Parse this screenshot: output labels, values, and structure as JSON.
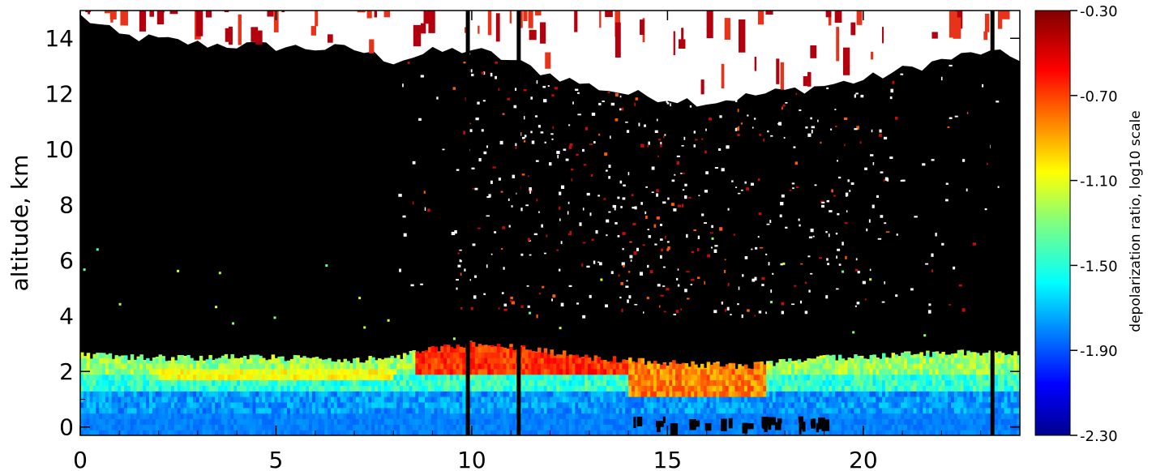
{
  "chart_data": {
    "type": "heatmap",
    "title": "",
    "xlabel": "",
    "ylabel": "altitude, km",
    "xlim": [
      0,
      24
    ],
    "ylim": [
      -0.3,
      15
    ],
    "x_ticks": [
      0,
      5,
      10,
      15,
      20
    ],
    "x_tick_labels": [
      "0",
      "5",
      "10",
      "15",
      "20"
    ],
    "y_ticks": [
      0,
      2,
      4,
      6,
      8,
      10,
      12,
      14
    ],
    "y_tick_labels": [
      "0",
      "2",
      "4",
      "6",
      "8",
      "10",
      "12",
      "14"
    ],
    "grid": false,
    "colorbar": {
      "label": "depolarization ratio, log10 scale",
      "range": [
        -2.3,
        -0.3
      ],
      "ticks": [
        -0.3,
        -0.7,
        -1.1,
        -1.5,
        -1.9,
        -2.3
      ],
      "tick_labels": [
        "-0.30",
        "-0.70",
        "-1.10",
        "-1.50",
        "-1.90",
        "-2.30"
      ],
      "colormap": "jet"
    },
    "colors": {
      "no_signal": "#000000",
      "missing": "#ffffff"
    },
    "regions": {
      "aerosol_layer_top_km": [
        [
          0,
          2.6
        ],
        [
          1.5,
          2.5
        ],
        [
          3,
          2.5
        ],
        [
          5,
          2.5
        ],
        [
          7,
          2.4
        ],
        [
          8,
          2.5
        ],
        [
          9,
          2.8
        ],
        [
          10,
          3.0
        ],
        [
          11,
          2.9
        ],
        [
          12,
          2.7
        ],
        [
          13,
          2.5
        ],
        [
          15,
          2.3
        ],
        [
          17,
          2.2
        ],
        [
          19,
          2.5
        ],
        [
          21,
          2.6
        ],
        [
          23,
          2.7
        ],
        [
          24,
          2.7
        ]
      ],
      "white_region_bottom_km": [
        [
          0,
          14.8
        ],
        [
          1,
          14.1
        ],
        [
          3,
          13.8
        ],
        [
          5,
          13.7
        ],
        [
          7,
          13.6
        ],
        [
          8,
          13.2
        ],
        [
          9,
          13.5
        ],
        [
          10,
          13.6
        ],
        [
          11,
          13.2
        ],
        [
          12,
          12.7
        ],
        [
          13,
          12.3
        ],
        [
          14,
          12.0
        ],
        [
          16,
          11.7
        ],
        [
          18,
          12.1
        ],
        [
          20,
          12.5
        ],
        [
          22,
          13.2
        ],
        [
          23,
          13.5
        ],
        [
          24,
          13.3
        ]
      ],
      "dust_layer": {
        "x_range": [
          8.5,
          14.5
        ],
        "altitude_range": [
          1.7,
          3.0
        ],
        "log_depol": -0.65
      },
      "dust_layer_2": {
        "x_range": [
          14,
          17.5
        ],
        "altitude_range": [
          1.0,
          2.4
        ],
        "log_depol": -0.8
      },
      "near_surface_log_depol": -1.75,
      "precipitation_columns_x": [
        9.9,
        11.2,
        23.3
      ]
    }
  }
}
